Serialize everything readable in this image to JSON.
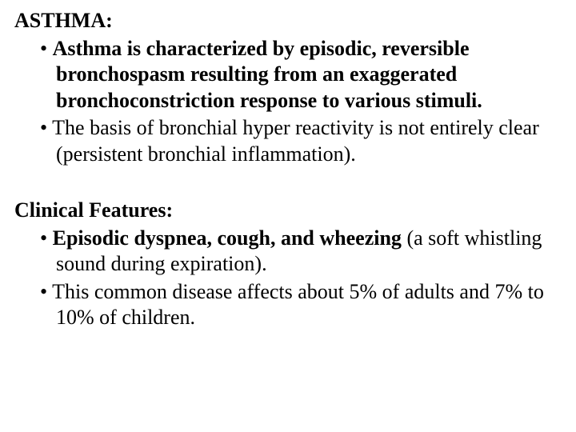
{
  "doc": {
    "background_color": "#ffffff",
    "text_color": "#000000",
    "font_family": "Times New Roman",
    "base_fontsize": 26,
    "line_height": 1.25,
    "heading1": "ASTHMA:",
    "section1": {
      "bullets": [
        {
          "bold": "Asthma is characterized by episodic, reversible bronchospasm resulting from an exaggerated bronchoconstriction response to various stimuli."
        },
        {
          "plain": "The basis of bronchial hyper reactivity is not entirely clear (persistent bronchial inflammation)."
        }
      ]
    },
    "heading2": "Clinical Features:",
    "section2": {
      "bullets": [
        {
          "leading_space": " ",
          "bold": "Episodic dyspnea, cough, and wheezing",
          "tail": " (a soft whistling sound during expiration)."
        },
        {
          "plain": "This common disease affects about 5% of adults and 7% to 10% of children."
        }
      ]
    }
  }
}
